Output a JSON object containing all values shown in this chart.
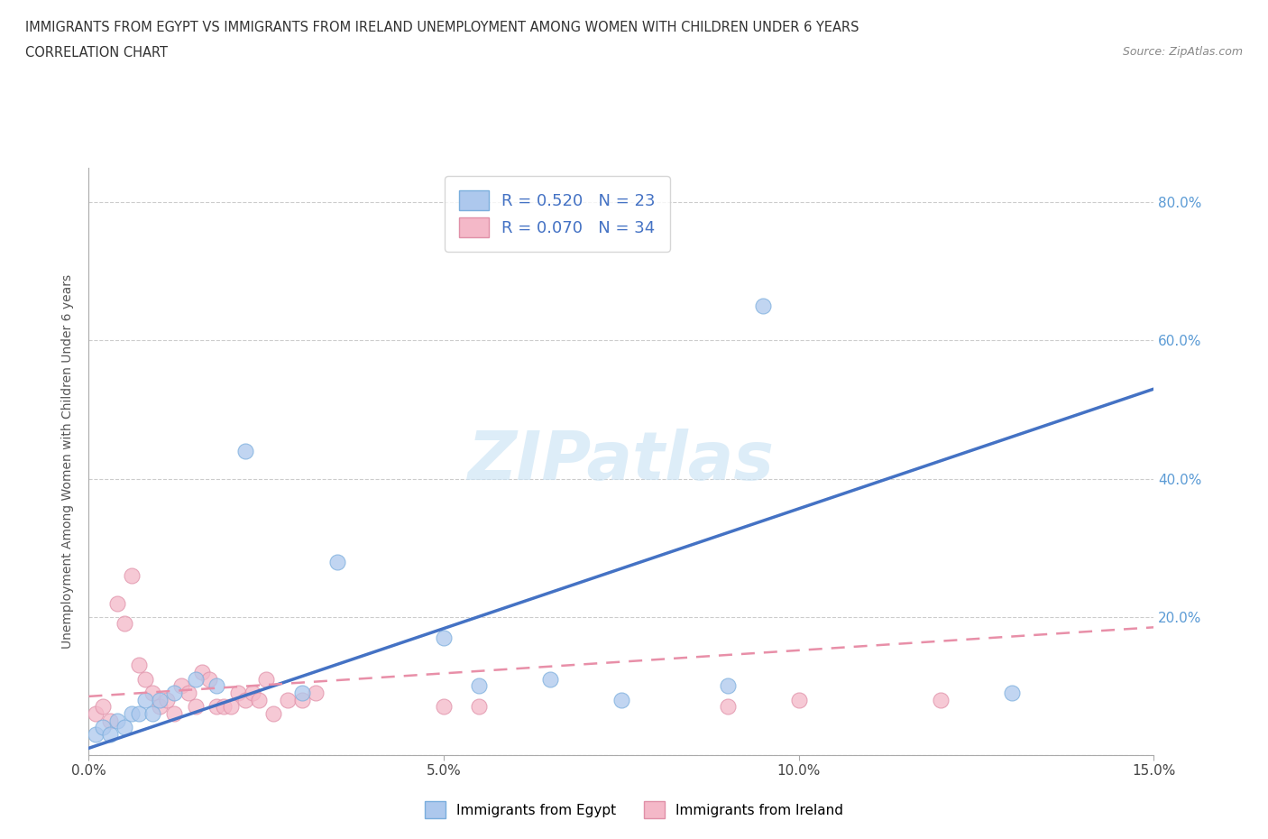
{
  "title_line1": "IMMIGRANTS FROM EGYPT VS IMMIGRANTS FROM IRELAND UNEMPLOYMENT AMONG WOMEN WITH CHILDREN UNDER 6 YEARS",
  "title_line2": "CORRELATION CHART",
  "source": "Source: ZipAtlas.com",
  "ylabel": "Unemployment Among Women with Children Under 6 years",
  "xlim": [
    0.0,
    0.15
  ],
  "ylim": [
    0.0,
    0.85
  ],
  "yticks": [
    0.0,
    0.2,
    0.4,
    0.6,
    0.8
  ],
  "ytick_labels": [
    "",
    "20.0%",
    "40.0%",
    "60.0%",
    "80.0%"
  ],
  "xticks": [
    0.0,
    0.05,
    0.1,
    0.15
  ],
  "xtick_labels": [
    "0.0%",
    "5.0%",
    "10.0%",
    "15.0%"
  ],
  "egypt_R": 0.52,
  "egypt_N": 23,
  "ireland_R": 0.07,
  "ireland_N": 34,
  "egypt_color": "#adc8ed",
  "ireland_color": "#f4b8c8",
  "egypt_line_color": "#4472c4",
  "ireland_line_color": "#e88fa8",
  "egypt_scatter_x": [
    0.001,
    0.002,
    0.003,
    0.004,
    0.005,
    0.006,
    0.007,
    0.008,
    0.009,
    0.01,
    0.012,
    0.015,
    0.018,
    0.022,
    0.03,
    0.035,
    0.05,
    0.055,
    0.065,
    0.075,
    0.09,
    0.095,
    0.13
  ],
  "egypt_scatter_y": [
    0.03,
    0.04,
    0.03,
    0.05,
    0.04,
    0.06,
    0.06,
    0.08,
    0.06,
    0.08,
    0.09,
    0.11,
    0.1,
    0.44,
    0.09,
    0.28,
    0.17,
    0.1,
    0.11,
    0.08,
    0.1,
    0.65,
    0.09
  ],
  "ireland_scatter_x": [
    0.001,
    0.002,
    0.003,
    0.004,
    0.005,
    0.006,
    0.007,
    0.008,
    0.009,
    0.01,
    0.011,
    0.012,
    0.013,
    0.014,
    0.015,
    0.016,
    0.017,
    0.018,
    0.019,
    0.02,
    0.021,
    0.022,
    0.023,
    0.024,
    0.025,
    0.026,
    0.028,
    0.03,
    0.032,
    0.05,
    0.055,
    0.09,
    0.1,
    0.12
  ],
  "ireland_scatter_y": [
    0.06,
    0.07,
    0.05,
    0.22,
    0.19,
    0.26,
    0.13,
    0.11,
    0.09,
    0.07,
    0.08,
    0.06,
    0.1,
    0.09,
    0.07,
    0.12,
    0.11,
    0.07,
    0.07,
    0.07,
    0.09,
    0.08,
    0.09,
    0.08,
    0.11,
    0.06,
    0.08,
    0.08,
    0.09,
    0.07,
    0.07,
    0.07,
    0.08,
    0.08
  ],
  "egypt_trend_x0": 0.0,
  "egypt_trend_y0": 0.01,
  "egypt_trend_x1": 0.15,
  "egypt_trend_y1": 0.53,
  "ireland_trend_x0": 0.0,
  "ireland_trend_y0": 0.085,
  "ireland_trend_x1": 0.15,
  "ireland_trend_y1": 0.185
}
